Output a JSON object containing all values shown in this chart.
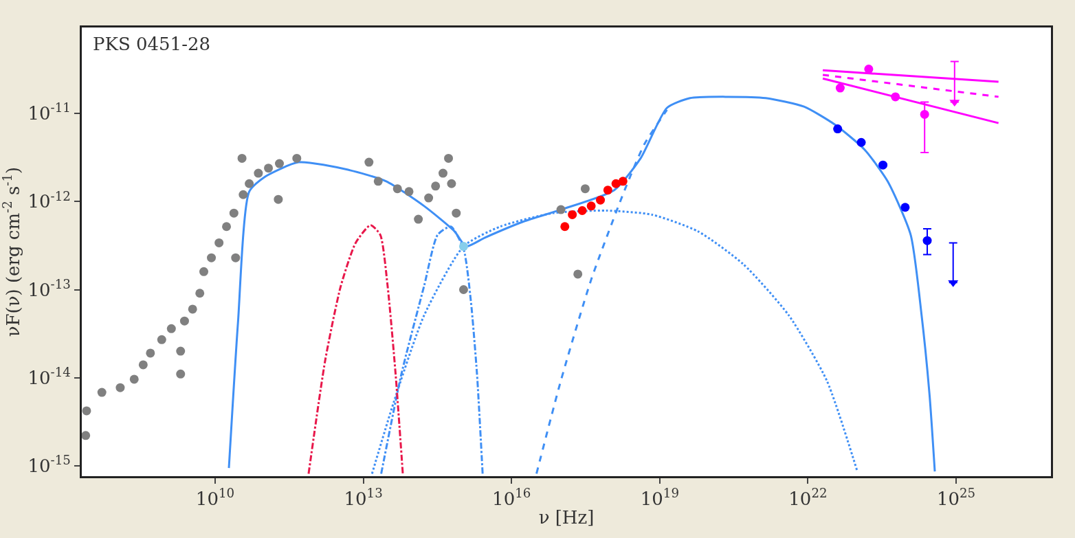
{
  "chart_data": {
    "type": "scatter",
    "xlabel": "ν [Hz]",
    "ylabel": "νF(ν) (erg cm$^{-2}$ s$^{-1}$)",
    "annotations": [
      "PKS 0451-28"
    ],
    "log": "xy",
    "xlim": [
      20000000.0,
      8.3e+26
    ],
    "ylim": [
      7.6e-16,
      9.5e-11
    ],
    "xticks": [
      {
        "value": 10000000000.0,
        "label": "10$^{10}$"
      },
      {
        "value": 10000000000000.0,
        "label": "10$^{13}$"
      },
      {
        "value": 1e+16,
        "label": "10$^{16}$"
      },
      {
        "value": 1e+19,
        "label": "10$^{19}$"
      },
      {
        "value": 1e+22,
        "label": "10$^{22}$"
      },
      {
        "value": 1e+25,
        "label": "10$^{25}$"
      }
    ],
    "yticks": [
      {
        "value": 1e-15,
        "label": "10$^{-15}$"
      },
      {
        "value": 1e-14,
        "label": "10$^{-14}$"
      },
      {
        "value": 1e-13,
        "label": "10$^{-13}$"
      },
      {
        "value": 1e-12,
        "label": "10$^{-12}$"
      },
      {
        "value": 1e-11,
        "label": "10$^{-11}$"
      }
    ],
    "series": [
      {
        "marker": "circle",
        "color": "#808080",
        "x": [
          24000000.0,
          25000000.0,
          51000000.0,
          120000000.0,
          230000000.0,
          350000000.0,
          490000000.0,
          830000000.0,
          1300000000.0,
          2000000000.0,
          2000000000.0,
          2400000000.0,
          3500000000.0,
          4900000000.0,
          5900000000.0,
          8400000000.0,
          12000000000.0,
          17000000000.0,
          24000000000.0,
          26000000000.0,
          37000000000.0,
          49000000000.0,
          75000000000.0,
          120000000000.0,
          200000000000.0,
          450000000000.0,
          35000000000.0,
          190000000000.0,
          13000000000000.0,
          20000000000000.0,
          49000000000000.0,
          84000000000000.0,
          130000000000000.0,
          210000000000000.0,
          290000000000000.0,
          410000000000000.0,
          530000000000000.0,
          610000000000000.0,
          760000000000000.0,
          1070000000000000.0,
          1e+17,
          3.1e+17,
          2.2e+17
        ],
        "values": [
          2.2e-15,
          4.2e-15,
          6.8e-15,
          7.7e-15,
          9.6e-15,
          1.4e-14,
          1.9e-14,
          2.7e-14,
          3.6e-14,
          2e-14,
          1.1e-14,
          4.4e-14,
          6e-14,
          9.1e-14,
          1.6e-13,
          2.3e-13,
          3.4e-13,
          5.2e-13,
          7.4e-13,
          2.3e-13,
          1.2e-12,
          1.6e-12,
          2.1e-12,
          2.4e-12,
          2.7e-12,
          3.1e-12,
          3.1e-12,
          1.06e-12,
          2.8e-12,
          1.7e-12,
          1.4e-12,
          1.3e-12,
          6.3e-13,
          1.1e-12,
          1.5e-12,
          2.1e-12,
          3.1e-12,
          1.6e-12,
          7.4e-13,
          1e-13,
          8.1e-13,
          1.4e-12,
          1.5e-13
        ]
      },
      {
        "marker": "circle",
        "color": "#87ceeb",
        "x": [
          1070000000000000.0
        ],
        "values": [
          3.1e-13
        ]
      },
      {
        "marker": "circle",
        "color": "#ff0000",
        "x": [
          1.2e+17,
          1.7e+17,
          2.7e+17,
          4.1e+17,
          6.3e+17,
          8.9e+17,
          1.3e+18,
          1.8e+18
        ],
        "values": [
          5.2e-13,
          7.1e-13,
          7.9e-13,
          8.9e-13,
          1.04e-12,
          1.35e-12,
          1.6e-12,
          1.7e-12
        ]
      },
      {
        "marker": "circle",
        "color": "#0000ff",
        "x": [
          4e+22,
          1.2e+23,
          3.3e+23,
          9.3e+23,
          2.6e+24
        ],
        "values": [
          6.7e-12,
          4.7e-12,
          2.6e-12,
          8.6e-13,
          3.6e-13
        ],
        "errors": [
          null,
          null,
          null,
          null,
          [
            2.5e-13,
            4.9e-13
          ]
        ]
      },
      {
        "color": "#0000ff",
        "marker": "triangle",
        "x": [
          8.7e+24
        ],
        "values": [
          1.2e-13
        ],
        "errors": [
          [
            1.2e-13,
            3.4e-13
          ]
        ]
      },
      {
        "marker": "circle",
        "color": "#ff00ff",
        "x": [
          4.5e+22,
          1.7e+23,
          5.9e+23,
          2.3e+24
        ],
        "values": [
          1.95e-11,
          3.2e-11,
          1.55e-11,
          9.8e-12
        ],
        "errors": [
          null,
          null,
          null,
          [
            3.6e-12,
            1.35e-11
          ]
        ]
      },
      {
        "color": "#ff00ff",
        "marker": "triangle",
        "x": [
          9.3e+24
        ],
        "values": [
          1.35e-11
        ],
        "errors": [
          [
            1.35e-11,
            3.9e-11
          ]
        ]
      },
      {
        "type": "line",
        "color": "#ff00ff",
        "line_style": "dashed",
        "x": [
          2e+22,
          7.2e+25
        ],
        "values": [
          2.75e-11,
          1.55e-11
        ]
      },
      {
        "type": "line",
        "color": "#ff00ff",
        "line_style": "solid",
        "x": [
          2e+22,
          7.2e+25
        ],
        "values": [
          2.5e-11,
          7.8e-12
        ]
      },
      {
        "type": "line",
        "color": "#ff00ff",
        "line_style": "solid",
        "x": [
          2e+22,
          7.2e+25
        ],
        "values": [
          3.1e-11,
          2.3e-11
        ]
      },
      {
        "type": "line",
        "color": "#3f8ff5",
        "line_style": "solid",
        "x": [
          19000000000.0,
          29000000000.0,
          49000000000.0,
          100000000000.0,
          490000000000.0,
          4900000000000.0,
          29000000000000.0,
          170000000000000.0,
          700000000000000.0,
          1200000000000000.0,
          2900000000000000.0,
          1.7e+16,
          1e+17,
          1.2e+18,
          4.1e+18,
          1.4e+19,
          4.1e+19,
          2.4e+20,
          1.4e+21,
          8.3e+21,
          3.5e+22,
          1.4e+23,
          4.1e+23,
          1.2e+24,
          2e+24,
          2.9e+24,
          3.7e+24
        ],
        "values": [
          9.4e-16,
          4.2e-14,
          1.3e-12,
          1.9e-12,
          2.8e-12,
          2.3e-12,
          1.7e-12,
          8.9e-13,
          4.6e-13,
          3.1e-13,
          3.9e-13,
          5.9e-13,
          8.1e-13,
          1.35e-12,
          3.1e-12,
          1.16e-11,
          1.5e-11,
          1.55e-11,
          1.5e-11,
          1.2e-11,
          7.5e-12,
          3.9e-12,
          1.7e-12,
          4.2e-13,
          5.1e-14,
          6.3e-15,
          8.6e-16
        ]
      },
      {
        "type": "line",
        "color": "#3f8ff5",
        "line_style": "dashdot",
        "x": [
          23000000000000.0,
          59000000000000.0,
          170000000000000.0,
          320000000000000.0,
          590000000000000.0,
          1070000000000000.0,
          1500000000000000.0,
          2000000000000000.0,
          2600000000000000.0
        ],
        "values": [
          8.1e-16,
          1.1e-14,
          1.1e-13,
          4.2e-13,
          5.2e-13,
          2.9e-13,
          7.5e-14,
          1.1e-14,
          8.1e-16
        ]
      },
      {
        "type": "line",
        "color": "#3f8ff5",
        "line_style": "dotted",
        "x": [
          15000000000000.0,
          41000000000000.0,
          170000000000000.0,
          1070000000000000.0,
          5900000000000000.0,
          7e+16,
          8.3e+17,
          7e+18,
          5.9e+19,
          4.9e+20,
          4.1e+21,
          2.4e+22,
          1e+23
        ],
        "values": [
          8.1e-16,
          5.2e-15,
          5.1e-14,
          3.1e-13,
          5.2e-13,
          7.4e-13,
          7.9e-13,
          7.1e-13,
          4.6e-13,
          1.95e-13,
          5.1e-14,
          9.3e-15,
          8.6e-16
        ]
      },
      {
        "type": "line",
        "color": "#3f8ff5",
        "line_style": "dashed",
        "x": [
          3.2e+16,
          1e+17,
          4.1e+17,
          2e+18,
          4.9e+18,
          1.4e+19
        ],
        "values": [
          8.1e-16,
          9.3e-15,
          1.3e-13,
          1.4e-12,
          4.5e-12,
          1.1e-11
        ]
      },
      {
        "type": "line",
        "color": "#e8174a",
        "line_style": "dashdot",
        "x": [
          780000000000.0,
          1700000000000.0,
          3500000000000.0,
          7000000000000.0,
          14000000000000.0,
          22000000000000.0,
          31000000000000.0,
          45000000000000.0,
          63000000000000.0
        ],
        "values": [
          8.1e-16,
          1.6e-14,
          1.1e-13,
          3.4e-13,
          5.4e-13,
          4.2e-13,
          1.1e-13,
          1.1e-14,
          8.1e-16
        ]
      }
    ]
  }
}
